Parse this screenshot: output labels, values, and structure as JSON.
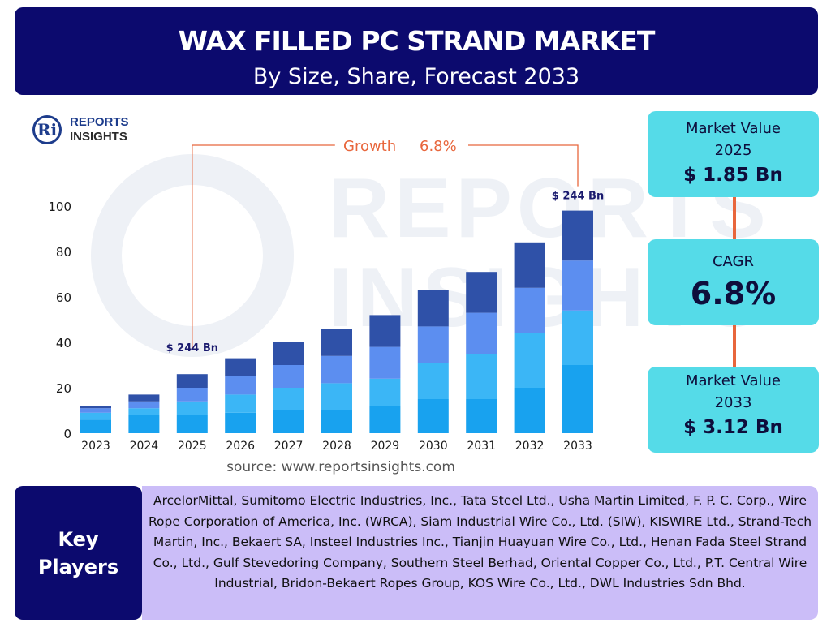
{
  "header": {
    "title": "WAX FILLED PC STRAND MARKET",
    "subtitle": "By Size, Share, Forecast 2033"
  },
  "logo": {
    "line1": "REPORTS",
    "line2": "INSIGHTS",
    "mark": "Ri"
  },
  "watermark": {
    "line1": "REPORTS",
    "line2": "INSIGHTS"
  },
  "chart_data": {
    "type": "bar",
    "stacked": true,
    "categories": [
      "2023",
      "2024",
      "2025",
      "2026",
      "2027",
      "2028",
      "2029",
      "2030",
      "2031",
      "2032",
      "2033"
    ],
    "series": [
      {
        "color": "#18a2ef",
        "values": [
          6,
          8,
          8,
          9,
          10,
          10,
          12,
          15,
          15,
          20,
          30
        ]
      },
      {
        "color": "#3bb6f6",
        "values": [
          3,
          3,
          6,
          8,
          10,
          12,
          12,
          16,
          20,
          24,
          24
        ]
      },
      {
        "color": "#5c8ef0",
        "values": [
          2,
          3,
          6,
          8,
          10,
          12,
          14,
          16,
          18,
          20,
          22
        ]
      },
      {
        "color": "#2f51a8",
        "values": [
          1,
          3,
          6,
          8,
          10,
          12,
          14,
          16,
          18,
          20,
          22
        ]
      }
    ],
    "yticks": [
      0,
      20,
      40,
      60,
      80,
      100
    ],
    "ylim": [
      0,
      100
    ],
    "annotations": {
      "growth_label": "Growth",
      "growth_value": "6.8%",
      "start_label": "$ 244 Bn",
      "end_label": "$ 244 Bn"
    },
    "colors": {
      "axis_text": "#1a1a1a",
      "bracket": "#e8663c",
      "annotation_text": "#1a1a6e"
    }
  },
  "source": "source: www.reportsinsights.com",
  "kpis": [
    {
      "label": "Market Value",
      "year": "2025",
      "value": "$ 1.85 Bn"
    },
    {
      "label": "CAGR",
      "value": "6.8%"
    },
    {
      "label": "Market Value",
      "year": "2033",
      "value": "$ 3.12 Bn"
    }
  ],
  "key_players": {
    "title_line1": "Key",
    "title_line2": "Players",
    "text": "ArcelorMittal, Sumitomo Electric Industries, Inc., Tata Steel Ltd., Usha Martin Limited, F. P. C. Corp., Wire Rope Corporation of America, Inc. (WRCA), Siam Industrial Wire Co., Ltd. (SIW), KISWIRE Ltd., Strand-Tech Martin, Inc., Bekaert SA, Insteel Industries Inc., Tianjin Huayuan Wire Co., Ltd., Henan Fada Steel Strand Co., Ltd., Gulf Stevedoring Company, Southern Steel Berhad, Oriental Copper Co., Ltd., P.T. Central Wire Industrial, Bridon-Bekaert Ropes Group, KOS Wire Co., Ltd., DWL Industries Sdn Bhd."
  },
  "colors": {
    "header_bg": "#0c0a6e",
    "kpi_bg": "#55dbe8",
    "players_bg": "#cbbdf8",
    "accent": "#e8663c"
  }
}
